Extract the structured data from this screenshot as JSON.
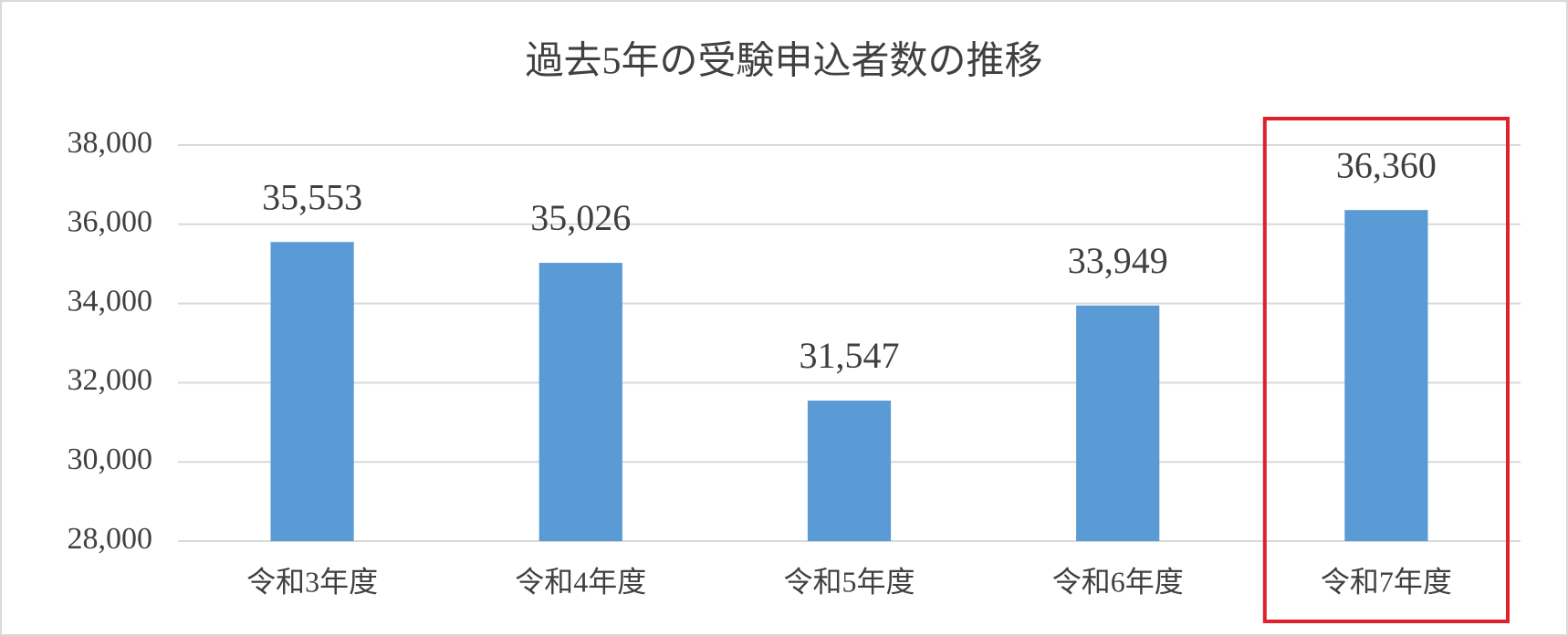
{
  "chart_data": {
    "type": "bar",
    "title": "過去5年の受験申込者数の推移",
    "categories": [
      "令和3年度",
      "令和4年度",
      "令和5年度",
      "令和6年度",
      "令和7年度"
    ],
    "values": [
      35553,
      35026,
      31547,
      33949,
      36360
    ],
    "value_labels": [
      "35,553",
      "35,026",
      "31,547",
      "33,949",
      "36,360"
    ],
    "color": "#5b9bd5",
    "ylim": [
      28000,
      38000
    ],
    "yticks": [
      {
        "value": 28000,
        "label": "28,000"
      },
      {
        "value": 30000,
        "label": "30,000"
      },
      {
        "value": 32000,
        "label": "32,000"
      },
      {
        "value": 34000,
        "label": "34,000"
      },
      {
        "value": 36000,
        "label": "36,000"
      },
      {
        "value": 38000,
        "label": "38,000"
      }
    ],
    "grid": true
  }
}
